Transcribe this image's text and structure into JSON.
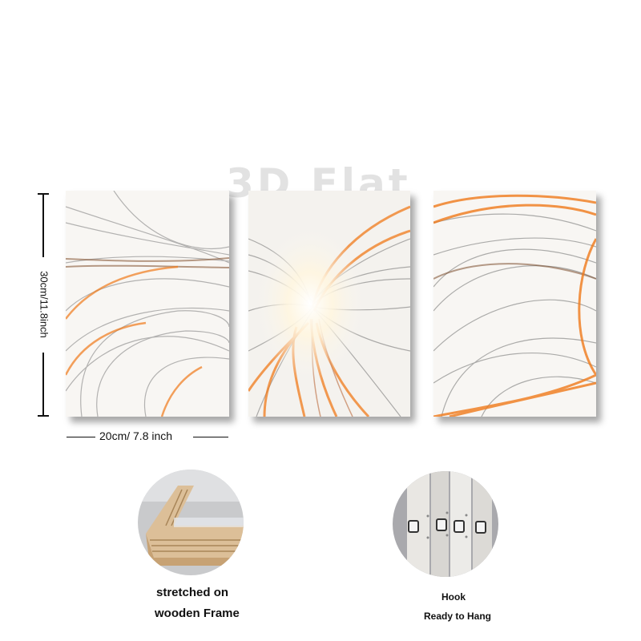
{
  "watermark": "3D Flat",
  "dimensions": {
    "height_label": "30cm/11.8inch",
    "width_label": "20cm/ 7.8 inch"
  },
  "features": [
    {
      "lines": [
        "stretched on",
        "wooden Frame"
      ]
    },
    {
      "lines": [
        "Hook",
        "Ready to Hang"
      ]
    }
  ],
  "colors": {
    "accent_orange": "#f07a1a",
    "swirl_gray": "#6e6e6e",
    "canvas_bg": "#f7f5f2",
    "wood": "#dcbf98"
  }
}
